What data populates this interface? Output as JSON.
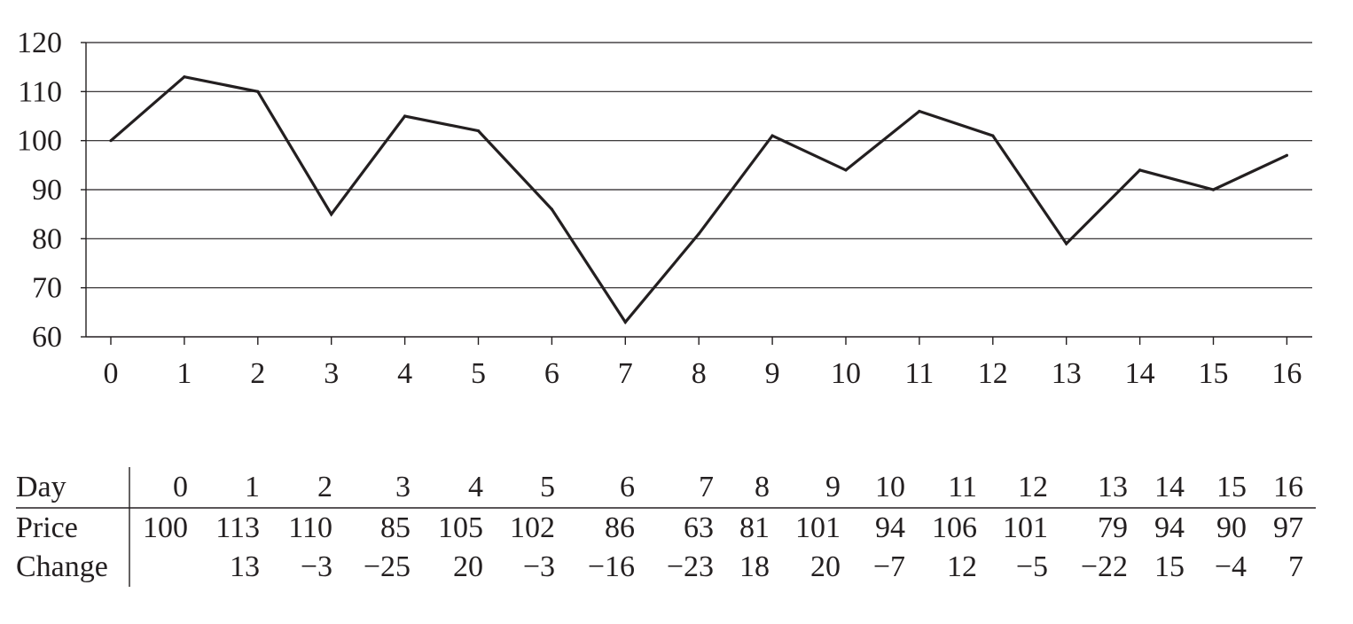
{
  "chart_data": {
    "type": "line",
    "title": "",
    "xlabel": "",
    "ylabel": "",
    "xlim": [
      0,
      16
    ],
    "ylim": [
      60,
      120
    ],
    "x": [
      0,
      1,
      2,
      3,
      4,
      5,
      6,
      7,
      8,
      9,
      10,
      11,
      12,
      13,
      14,
      15,
      16
    ],
    "y": [
      100,
      113,
      110,
      85,
      105,
      102,
      86,
      63,
      81,
      101,
      94,
      106,
      101,
      79,
      94,
      90,
      97
    ],
    "y_ticks": [
      "60",
      "70",
      "80",
      "90",
      "100",
      "110",
      "120"
    ],
    "x_ticks": [
      "0",
      "1",
      "2",
      "3",
      "4",
      "5",
      "6",
      "7",
      "8",
      "9",
      "10",
      "11",
      "12",
      "13",
      "14",
      "15",
      "16"
    ],
    "grid": "horizontal",
    "line_color": "#231f20",
    "grid_color": "#231f20"
  },
  "table": {
    "row_headers": [
      "Day",
      "Price",
      "Change"
    ],
    "days": [
      "0",
      "1",
      "2",
      "3",
      "4",
      "5",
      "6",
      "7",
      "8",
      "9",
      "10",
      "11",
      "12",
      "13",
      "14",
      "15",
      "16"
    ],
    "prices": [
      "100",
      "113",
      "110",
      "85",
      "105",
      "102",
      "86",
      "63",
      "81",
      "101",
      "94",
      "106",
      "101",
      "79",
      "94",
      "90",
      "97"
    ],
    "changes": [
      "",
      "13",
      "−3",
      "−25",
      "20",
      "−3",
      "−16",
      "−23",
      "18",
      "20",
      "−7",
      "12",
      "−5",
      "−22",
      "15",
      "−4",
      "7"
    ]
  }
}
